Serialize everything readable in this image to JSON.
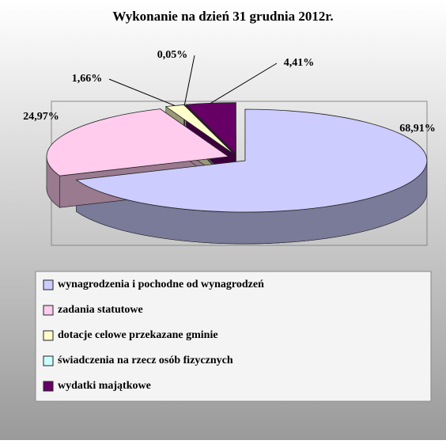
{
  "chart_data": {
    "type": "pie3d",
    "title": "Wykonanie na dzień 31 grudnia 2012r.",
    "categories": [
      "wynagrodzenia i pochodne od wynagrodzeń",
      "zadania statutowe",
      "dotacje celowe przekazane gminie",
      "świadczenia na rzecz osób fizycznych",
      "wydatki majątkowe"
    ],
    "values": [
      68.91,
      24.97,
      1.66,
      0.05,
      4.41
    ],
    "value_labels": [
      "68,91%",
      "24,97%",
      "1,66%",
      "0,05%",
      "4,41%"
    ],
    "colors": [
      "#ccccff",
      "#ffccee",
      "#ffffcc",
      "#ccffff",
      "#660066"
    ],
    "legend": "bottom"
  }
}
